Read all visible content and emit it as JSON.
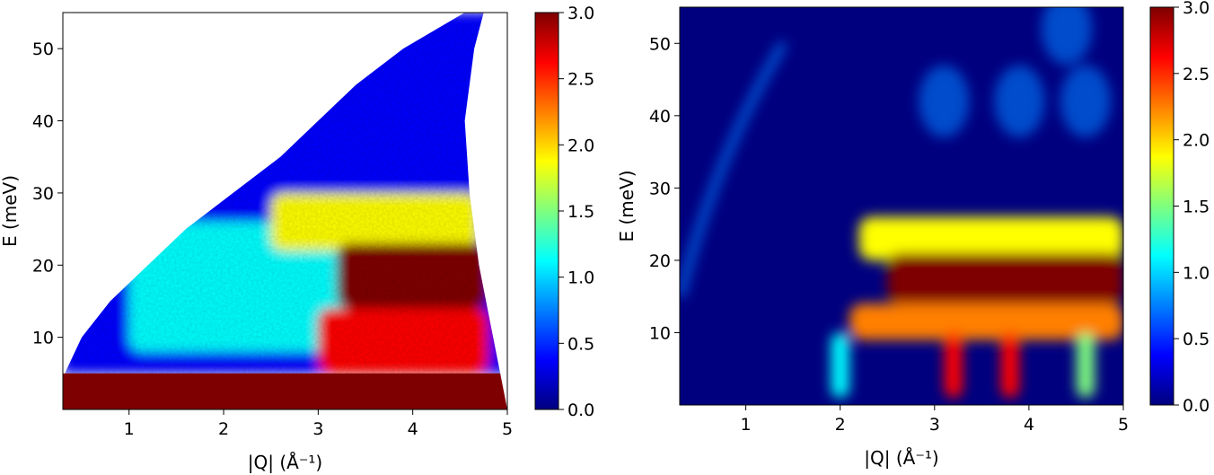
{
  "colormap": [
    "#00007f",
    "#0000ff",
    "#007fff",
    "#00ffff",
    "#7fff7f",
    "#ffff00",
    "#ff7f00",
    "#ff0000",
    "#7f0000"
  ],
  "chart_data": [
    {
      "type": "heatmap",
      "panel": "left",
      "xlabel": "|Q| (Å⁻¹)",
      "ylabel": "E (meV)",
      "xlim": [
        0.3,
        5.0
      ],
      "ylim": [
        0,
        55
      ],
      "xticks": [
        1,
        2,
        3,
        4,
        5
      ],
      "yticks": [
        10,
        20,
        30,
        40,
        50
      ],
      "colorbar": {
        "range": [
          0.0,
          3.0
        ],
        "ticks": [
          "0.0",
          "0.5",
          "1.0",
          "1.5",
          "2.0",
          "2.5",
          "3.0"
        ]
      },
      "data_region": {
        "left_boundary": [
          [
            0.32,
            5
          ],
          [
            0.5,
            10
          ],
          [
            0.8,
            15
          ],
          [
            1.2,
            20
          ],
          [
            1.6,
            25
          ],
          [
            2.1,
            30
          ],
          [
            2.6,
            35
          ],
          [
            3.0,
            40
          ],
          [
            3.4,
            45
          ],
          [
            3.9,
            50
          ],
          [
            4.55,
            55
          ]
        ],
        "right_boundary": [
          [
            5.0,
            0
          ],
          [
            4.85,
            10
          ],
          [
            4.7,
            20
          ],
          [
            4.6,
            30
          ],
          [
            4.55,
            40
          ],
          [
            4.65,
            50
          ],
          [
            4.75,
            55
          ]
        ]
      },
      "features": [
        {
          "name": "elastic line",
          "q_range": [
            0.3,
            5.0
          ],
          "e_range": [
            0,
            5
          ],
          "intensity": 3.0
        },
        {
          "name": "background",
          "q_range": [
            0.3,
            4.7
          ],
          "e_range": [
            5,
            55
          ],
          "intensity": 0.5
        },
        {
          "name": "mid-energy band",
          "q_range": [
            1.0,
            3.5
          ],
          "e_range": [
            8,
            26
          ],
          "intensity": 1.1
        },
        {
          "name": "upper band",
          "q_range": [
            2.5,
            4.7
          ],
          "e_range": [
            22,
            30
          ],
          "intensity": 1.8
        },
        {
          "name": "main excitation",
          "q_range": [
            3.2,
            4.8
          ],
          "e_range": [
            14,
            23
          ],
          "intensity": 3.0
        },
        {
          "name": "low-energy excitation",
          "q_range": [
            3.0,
            4.8
          ],
          "e_range": [
            5,
            14
          ],
          "intensity": 2.5
        }
      ]
    },
    {
      "type": "heatmap",
      "panel": "right",
      "xlabel": "|Q| (Å⁻¹)",
      "ylabel": "E (meV)",
      "xlim": [
        0.3,
        5.0
      ],
      "ylim": [
        0,
        55
      ],
      "xticks": [
        1,
        2,
        3,
        4,
        5
      ],
      "yticks": [
        10,
        20,
        30,
        40,
        50
      ],
      "colorbar": {
        "range": [
          0.0,
          3.0
        ],
        "ticks": [
          "0.0",
          "0.5",
          "1.0",
          "1.5",
          "2.0",
          "2.5",
          "3.0"
        ]
      },
      "features": [
        {
          "name": "dispersive branch",
          "q_range": [
            0.3,
            1.4
          ],
          "e_range": [
            15,
            50
          ],
          "intensity": 0.8
        },
        {
          "name": "band 24 meV",
          "q_range": [
            2.2,
            5.0
          ],
          "e_range": [
            20,
            26
          ],
          "intensity": 2.0
        },
        {
          "name": "band 18 meV",
          "q_range": [
            2.5,
            5.0
          ],
          "e_range": [
            14,
            21
          ],
          "intensity": 3.0
        },
        {
          "name": "band 12 meV",
          "q_range": [
            2.1,
            5.0
          ],
          "e_range": [
            9,
            14
          ],
          "intensity": 2.2
        },
        {
          "name": "low-E mode Q=2.0",
          "q": 2.0,
          "e_range": [
            1,
            10
          ],
          "intensity": 1.2
        },
        {
          "name": "low-E mode Q=3.2",
          "q": 3.2,
          "e_range": [
            1,
            10
          ],
          "intensity": 2.8
        },
        {
          "name": "low-E mode Q=3.8",
          "q": 3.8,
          "e_range": [
            1,
            10
          ],
          "intensity": 2.6
        },
        {
          "name": "low-E mode Q=4.6",
          "q": 4.6,
          "e_range": [
            1,
            10
          ],
          "intensity": 1.6
        },
        {
          "name": "high-E lobes",
          "q_range": [
            2.8,
            5.0
          ],
          "e_range": [
            35,
            55
          ],
          "intensity": 0.9
        }
      ]
    }
  ]
}
